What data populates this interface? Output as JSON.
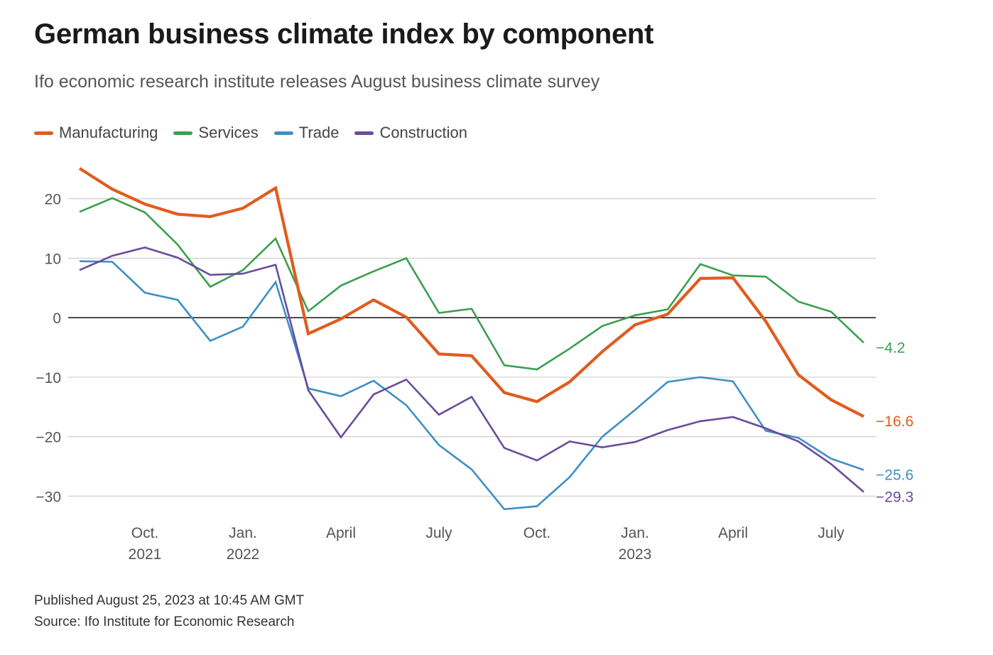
{
  "title": "German business climate index by component",
  "subtitle": "Ifo economic research institute releases August business climate survey",
  "footer": {
    "published": "Published August 25, 2023 at 10:45 AM GMT",
    "source": "Source: Ifo Institute for Economic Research"
  },
  "chart_data": {
    "type": "line",
    "x": [
      "2021-08",
      "2021-09",
      "2021-10",
      "2021-11",
      "2021-12",
      "2022-01",
      "2022-02",
      "2022-03",
      "2022-04",
      "2022-05",
      "2022-06",
      "2022-07",
      "2022-08",
      "2022-09",
      "2022-10",
      "2022-11",
      "2022-12",
      "2023-01",
      "2023-02",
      "2023-03",
      "2023-04",
      "2023-05",
      "2023-06",
      "2023-07",
      "2023-08"
    ],
    "x_ticks": [
      {
        "x": "2021-10",
        "label": "Oct.",
        "sublabel": "2021"
      },
      {
        "x": "2022-01",
        "label": "Jan.",
        "sublabel": "2022"
      },
      {
        "x": "2022-04",
        "label": "April",
        "sublabel": ""
      },
      {
        "x": "2022-07",
        "label": "July",
        "sublabel": ""
      },
      {
        "x": "2022-10",
        "label": "Oct.",
        "sublabel": ""
      },
      {
        "x": "2023-01",
        "label": "Jan.",
        "sublabel": "2023"
      },
      {
        "x": "2023-04",
        "label": "April",
        "sublabel": ""
      },
      {
        "x": "2023-07",
        "label": "July",
        "sublabel": ""
      }
    ],
    "y_ticks": [
      20,
      10,
      0,
      -10,
      -20,
      -30
    ],
    "ylim": [
      -33,
      26
    ],
    "grid": true,
    "legend_position": "top-left",
    "series": [
      {
        "name": "Manufacturing",
        "color": "#e05c1f",
        "bold": true,
        "end_label": "−16.6",
        "values": [
          25.1,
          21.6,
          19.1,
          17.4,
          17.0,
          18.4,
          21.8,
          -2.7,
          -0.2,
          3.0,
          0.1,
          -6.1,
          -6.4,
          -12.6,
          -14.1,
          -10.8,
          -5.7,
          -1.2,
          0.6,
          6.6,
          6.7,
          -0.6,
          -9.6,
          -13.8,
          -16.6
        ]
      },
      {
        "name": "Services",
        "color": "#3c9e4e",
        "bold": false,
        "end_label": "−4.2",
        "values": [
          17.8,
          20.1,
          17.7,
          12.3,
          5.2,
          8.0,
          13.3,
          1.1,
          5.4,
          7.8,
          10.0,
          0.8,
          1.5,
          -8.0,
          -8.7,
          -5.2,
          -1.4,
          0.4,
          1.4,
          9.0,
          7.1,
          6.9,
          2.7,
          1.0,
          -4.2
        ]
      },
      {
        "name": "Trade",
        "color": "#3f8fc5",
        "bold": false,
        "end_label": "−25.6",
        "values": [
          9.5,
          9.4,
          4.2,
          3.0,
          -3.9,
          -1.5,
          6.0,
          -11.9,
          -13.2,
          -10.6,
          -14.7,
          -21.4,
          -25.5,
          -32.2,
          -31.7,
          -26.8,
          -20.0,
          -15.5,
          -10.8,
          -10.0,
          -10.7,
          -19.0,
          -20.2,
          -23.7,
          -25.6
        ]
      },
      {
        "name": "Construction",
        "color": "#6a4c9c",
        "bold": false,
        "end_label": "−29.3",
        "values": [
          8.0,
          10.4,
          11.8,
          10.1,
          7.2,
          7.4,
          8.9,
          -12.2,
          -20.1,
          -12.9,
          -10.4,
          -16.3,
          -13.3,
          -21.9,
          -24.0,
          -20.8,
          -21.8,
          -20.9,
          -18.9,
          -17.4,
          -16.7,
          -18.6,
          -20.8,
          -24.6,
          -29.3
        ]
      }
    ]
  }
}
